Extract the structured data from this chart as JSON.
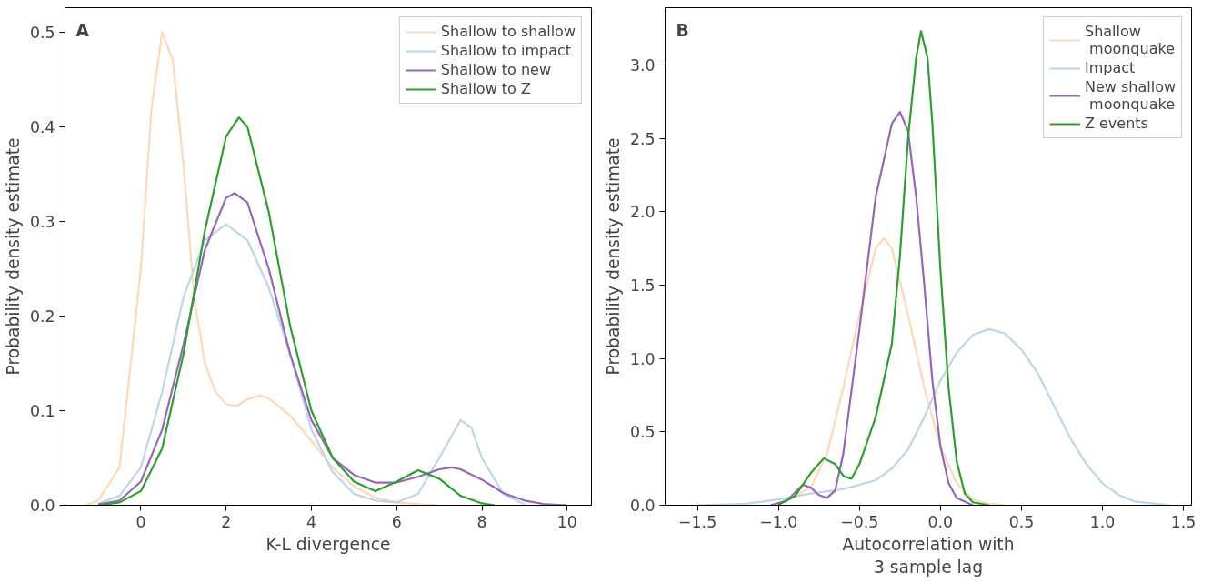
{
  "chart_data": [
    {
      "type": "line",
      "xlabel": "K-L divergence",
      "ylabel": "Probability density estimate",
      "annotations": [
        "A"
      ],
      "legend": "top right",
      "grid": false,
      "xlim": [
        -1.78,
        10.57
      ],
      "ylim": [
        0,
        0.526
      ],
      "xticks": [
        0,
        2,
        4,
        6,
        8,
        10
      ],
      "yticks": [
        {
          "value": 0,
          "label": "0.0"
        },
        0.1,
        0.2,
        0.3,
        0.4,
        0.5
      ],
      "series": [
        {
          "name": "Shallow to shallow",
          "color": "#ffd8b7",
          "x": [
            -1.3,
            -1,
            -0.5,
            0,
            0.25,
            0.5,
            0.75,
            1,
            1.25,
            1.5,
            1.75,
            2,
            2.25,
            2.5,
            2.8,
            3,
            3.5,
            4,
            4.5,
            5,
            5.5,
            6,
            6.5,
            7
          ],
          "values": [
            0,
            0.005,
            0.04,
            0.25,
            0.42,
            0.5,
            0.47,
            0.36,
            0.22,
            0.15,
            0.12,
            0.107,
            0.105,
            0.112,
            0.116,
            0.113,
            0.095,
            0.068,
            0.04,
            0.02,
            0.008,
            0.003,
            0.001,
            0
          ]
        },
        {
          "name": "Shallow to impact",
          "color": "#bcd6e8",
          "x": [
            -1,
            -0.5,
            0,
            0.5,
            1,
            1.5,
            2,
            2.5,
            3,
            3.5,
            4,
            4.5,
            5,
            5.5,
            6,
            6.5,
            7,
            7.5,
            7.75,
            8,
            8.5,
            9
          ],
          "values": [
            0.002,
            0.01,
            0.04,
            0.12,
            0.22,
            0.28,
            0.297,
            0.28,
            0.23,
            0.16,
            0.08,
            0.035,
            0.012,
            0.005,
            0.003,
            0.012,
            0.05,
            0.09,
            0.082,
            0.05,
            0.012,
            0.001
          ]
        },
        {
          "name": "Shallow to new",
          "color": "#9467bd",
          "x": [
            -1,
            -0.5,
            0,
            0.5,
            1,
            1.5,
            2,
            2.2,
            2.5,
            3,
            3.5,
            4,
            4.5,
            5,
            5.5,
            6,
            6.5,
            7,
            7.3,
            7.5,
            8,
            8.5,
            9,
            9.5,
            10
          ],
          "values": [
            0.001,
            0.005,
            0.025,
            0.08,
            0.17,
            0.27,
            0.325,
            0.33,
            0.32,
            0.25,
            0.16,
            0.09,
            0.05,
            0.032,
            0.024,
            0.024,
            0.03,
            0.038,
            0.04,
            0.038,
            0.027,
            0.013,
            0.005,
            0.001,
            0
          ]
        },
        {
          "name": "Shallow to Z",
          "color": "#2ca02c",
          "x": [
            -1,
            -0.5,
            0,
            0.5,
            1,
            1.5,
            2,
            2.3,
            2.5,
            3,
            3.5,
            4,
            4.5,
            5,
            5.5,
            6,
            6.5,
            7,
            7.5,
            8,
            8.3
          ],
          "values": [
            0,
            0.003,
            0.015,
            0.06,
            0.16,
            0.29,
            0.39,
            0.41,
            0.4,
            0.31,
            0.19,
            0.1,
            0.05,
            0.025,
            0.015,
            0.025,
            0.037,
            0.028,
            0.01,
            0.002,
            0
          ]
        }
      ]
    },
    {
      "type": "line",
      "xlabel": "Autocorrelation with\n3 sample lag",
      "ylabel": "Probability density estimate",
      "annotations": [
        "B"
      ],
      "legend": "top right",
      "grid": false,
      "xlim": [
        -1.7,
        1.55
      ],
      "ylim": [
        0,
        3.39
      ],
      "xticks": [
        {
          "value": -1.5,
          "label": "−1.5"
        },
        {
          "value": -1.0,
          "label": "−1.0"
        },
        {
          "value": -0.5,
          "label": "−0.5"
        },
        {
          "value": 0,
          "label": "0.0"
        },
        0.5,
        {
          "value": 1,
          "label": "1.0"
        },
        1.5
      ],
      "yticks": [
        {
          "value": 0,
          "label": "0.0"
        },
        0.5,
        {
          "value": 1,
          "label": "1.0"
        },
        1.5,
        {
          "value": 2,
          "label": "2.0"
        },
        2.5,
        {
          "value": 3,
          "label": "3.0"
        }
      ],
      "series": [
        {
          "name": "Shallow\n moonquake",
          "color": "#ffd8b7",
          "x": [
            -1.0,
            -0.8,
            -0.7,
            -0.6,
            -0.5,
            -0.4,
            -0.35,
            -0.3,
            -0.2,
            -0.1,
            0,
            0.1,
            0.2,
            0.3,
            0.4
          ],
          "values": [
            0.01,
            0.12,
            0.35,
            0.8,
            1.3,
            1.75,
            1.82,
            1.75,
            1.3,
            0.8,
            0.4,
            0.15,
            0.04,
            0.01,
            0
          ]
        },
        {
          "name": "Impact",
          "color": "#bcd6e8",
          "x": [
            -1.5,
            -1.2,
            -1,
            -0.8,
            -0.6,
            -0.4,
            -0.3,
            -0.2,
            -0.1,
            0,
            0.1,
            0.2,
            0.3,
            0.4,
            0.5,
            0.6,
            0.7,
            0.8,
            0.9,
            1.0,
            1.1,
            1.2,
            1.4
          ],
          "values": [
            0,
            0.01,
            0.04,
            0.08,
            0.11,
            0.17,
            0.25,
            0.38,
            0.6,
            0.85,
            1.04,
            1.16,
            1.2,
            1.17,
            1.06,
            0.9,
            0.68,
            0.46,
            0.28,
            0.15,
            0.07,
            0.025,
            0.002
          ]
        },
        {
          "name": "New shallow\n moonquake",
          "color": "#9467bd",
          "x": [
            -1.05,
            -0.95,
            -0.85,
            -0.8,
            -0.75,
            -0.7,
            -0.65,
            -0.6,
            -0.5,
            -0.4,
            -0.3,
            -0.25,
            -0.2,
            -0.15,
            -0.1,
            -0.05,
            0,
            0.05,
            0.1,
            0.2
          ],
          "values": [
            0,
            0.03,
            0.14,
            0.12,
            0.07,
            0.05,
            0.1,
            0.35,
            1.2,
            2.1,
            2.6,
            2.68,
            2.55,
            2.1,
            1.5,
            0.85,
            0.4,
            0.15,
            0.05,
            0
          ]
        },
        {
          "name": "Z events",
          "color": "#2ca02c",
          "x": [
            -1.0,
            -0.9,
            -0.8,
            -0.72,
            -0.65,
            -0.6,
            -0.55,
            -0.5,
            -0.4,
            -0.3,
            -0.25,
            -0.2,
            -0.15,
            -0.12,
            -0.08,
            -0.05,
            0,
            0.05,
            0.1,
            0.15,
            0.2,
            0.3
          ],
          "values": [
            0.005,
            0.06,
            0.22,
            0.32,
            0.28,
            0.2,
            0.18,
            0.28,
            0.6,
            1.1,
            1.7,
            2.5,
            3.05,
            3.23,
            3.05,
            2.6,
            1.6,
            0.8,
            0.3,
            0.08,
            0.02,
            0
          ]
        }
      ]
    }
  ]
}
